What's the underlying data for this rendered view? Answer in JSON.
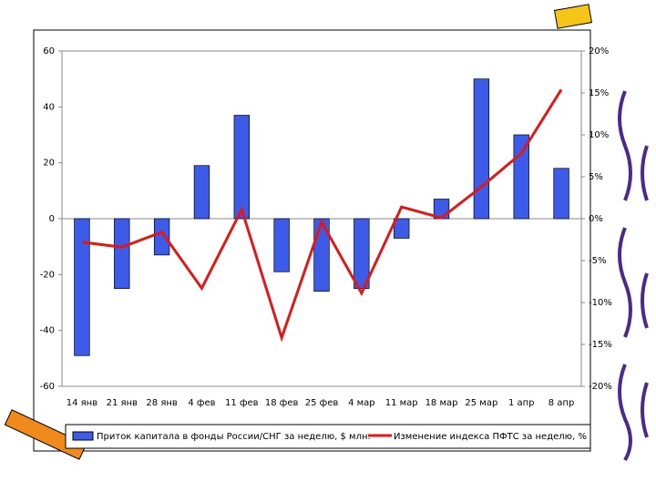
{
  "chart_data": {
    "type": "bar-line",
    "categories": [
      "14 янв",
      "21 янв",
      "28 янв",
      "4 фев",
      "11 фев",
      "18 фев",
      "25 фев",
      "4 мар",
      "11 мар",
      "18 мар",
      "25 мар",
      "1 апр",
      "8 апр"
    ],
    "series": [
      {
        "name": "Приток капитала в фонды России/СНГ за неделю, $ млн.",
        "color": "#3b5be8",
        "type": "bar",
        "values": [
          -49,
          -25,
          -13,
          19,
          37,
          -19,
          -26,
          -25,
          -7,
          7,
          50,
          30,
          18
        ]
      },
      {
        "name": "Изменение индекса ПФТС за неделю, %",
        "color": "#e01818",
        "type": "line",
        "axis": "y2",
        "values": [
          -2.8,
          -3.4,
          -1.6,
          -8.3,
          1.1,
          -14.2,
          -0.4,
          -8.9,
          1.4,
          0.1,
          3.8,
          7.8,
          15.4
        ]
      }
    ],
    "ylim": [
      -60,
      60
    ],
    "yticks": [
      60,
      40,
      20,
      0,
      -20,
      -40,
      -60
    ],
    "y2lim": [
      -20,
      20
    ],
    "y2ticks": [
      {
        "value": 20,
        "label": "20%"
      },
      {
        "value": 15,
        "label": "15%"
      },
      {
        "value": 10,
        "label": "10%"
      },
      {
        "value": 5,
        "label": "5%"
      },
      {
        "value": 0,
        "label": "0%"
      },
      {
        "value": -5,
        "label": "-5%"
      },
      {
        "value": -10,
        "label": "-10%"
      },
      {
        "value": -15,
        "label": "-15%"
      },
      {
        "value": -20,
        "label": "-20%"
      }
    ],
    "legend": "bottom"
  }
}
